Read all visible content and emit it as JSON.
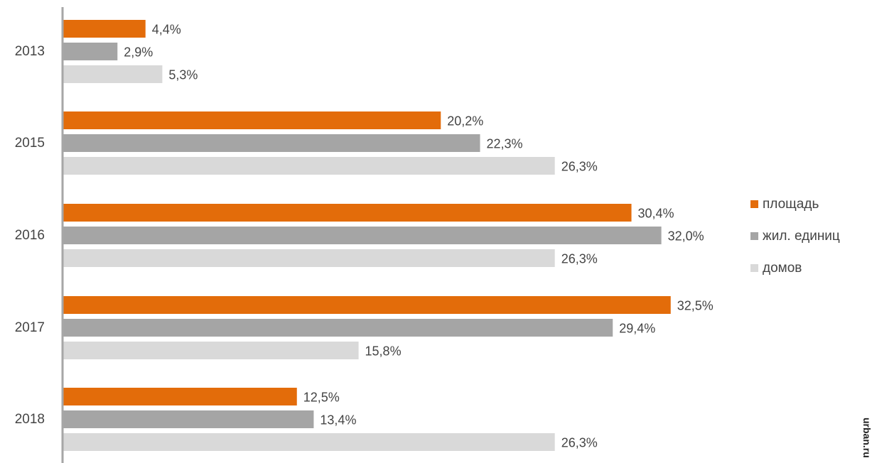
{
  "chart_data": {
    "type": "bar",
    "orientation": "horizontal",
    "categories": [
      "2013",
      "2015",
      "2016",
      "2017",
      "2018"
    ],
    "series": [
      {
        "name": "площадь",
        "color": "#E36C0A",
        "values": [
          4.4,
          20.2,
          30.4,
          32.5,
          12.5
        ],
        "labels": [
          "4,4%",
          "20,2%",
          "30,4%",
          "32,5%",
          "12,5%"
        ]
      },
      {
        "name": "жил. единиц",
        "color": "#A5A5A5",
        "values": [
          2.9,
          22.3,
          32.0,
          29.4,
          13.4
        ],
        "labels": [
          "2,9%",
          "22,3%",
          "32,0%",
          "29,4%",
          "13,4%"
        ]
      },
      {
        "name": "домов",
        "color": "#D9D9D9",
        "values": [
          5.3,
          26.3,
          26.3,
          15.8,
          26.3
        ],
        "labels": [
          "5,3%",
          "26,3%",
          "26,3%",
          "15,8%",
          "26,3%"
        ]
      }
    ],
    "title": "",
    "xlabel": "",
    "ylabel": "",
    "grid": false,
    "legend_position": "right"
  },
  "watermark": {
    "text": "urban.ru"
  }
}
